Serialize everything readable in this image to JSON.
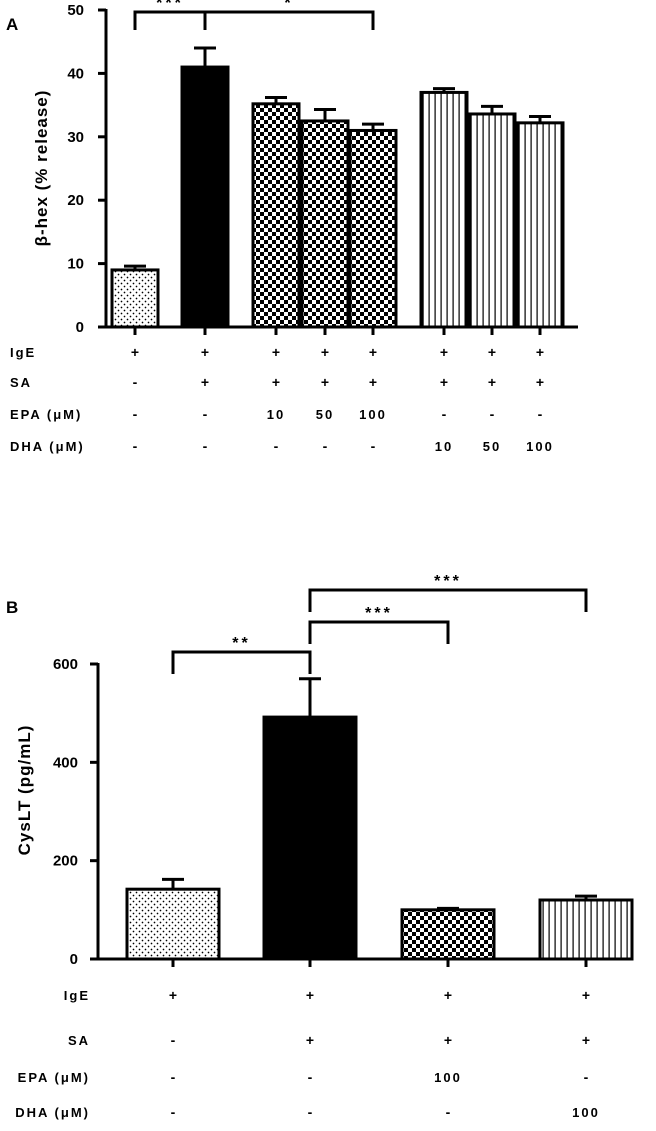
{
  "chart_data": [
    {
      "panel": "A",
      "type": "bar",
      "ylabel": "β-hex (% release)",
      "ylim": [
        0,
        50
      ],
      "yticks": [
        0,
        10,
        20,
        30,
        40,
        50
      ],
      "values": [
        9,
        41,
        35.2,
        32.5,
        31,
        37,
        33.6,
        32.2
      ],
      "errors": [
        0.6,
        3.0,
        1.0,
        1.8,
        1.0,
        0.6,
        1.2,
        1.0
      ],
      "patterns": [
        "dots",
        "solid",
        "checker",
        "checker",
        "checker",
        "vstripes",
        "vstripes",
        "vstripes"
      ],
      "conditions": [
        {
          "label": "IgE",
          "values": [
            "+",
            "+",
            "+",
            "+",
            "+",
            "+",
            "+",
            "+"
          ]
        },
        {
          "label": "SA",
          "values": [
            "-",
            "+",
            "+",
            "+",
            "+",
            "+",
            "+",
            "+"
          ]
        },
        {
          "label": "EPA (μM)",
          "values": [
            "-",
            "-",
            "10",
            "50",
            "100",
            "-",
            "-",
            "-"
          ]
        },
        {
          "label": "DHA (μM)",
          "values": [
            "-",
            "-",
            "-",
            "-",
            "-",
            "10",
            "50",
            "100"
          ]
        }
      ],
      "significance": [
        {
          "from": 0,
          "to": 1,
          "label": "***"
        },
        {
          "from": 1,
          "to": 4,
          "label": "*"
        }
      ],
      "grid": false,
      "legend": "none"
    },
    {
      "panel": "B",
      "type": "bar",
      "ylabel": "CysLT (pg/mL)",
      "ylim": [
        0,
        600
      ],
      "yticks": [
        0,
        200,
        400,
        600
      ],
      "values": [
        142,
        492,
        100,
        120
      ],
      "errors": [
        20,
        78,
        3,
        8
      ],
      "patterns": [
        "dots",
        "solid",
        "checker",
        "vstripes"
      ],
      "conditions": [
        {
          "label": "IgE",
          "values": [
            "+",
            "+",
            "+",
            "+"
          ]
        },
        {
          "label": "SA",
          "values": [
            "-",
            "+",
            "+",
            "+"
          ]
        },
        {
          "label": "EPA (μM)",
          "values": [
            "-",
            "-",
            "100",
            "-"
          ]
        },
        {
          "label": "DHA (μM)",
          "values": [
            "-",
            "-",
            "-",
            "100"
          ]
        }
      ],
      "significance": [
        {
          "from": 0,
          "to": 1,
          "label": "**"
        },
        {
          "from": 1,
          "to": 2,
          "label": "***"
        },
        {
          "from": 1,
          "to": 3,
          "label": "***"
        }
      ],
      "grid": false,
      "legend": "none"
    }
  ]
}
